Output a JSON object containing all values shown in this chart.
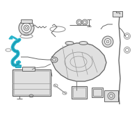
{
  "background_color": "#ffffff",
  "figsize": [
    2.0,
    2.0
  ],
  "dpi": 100,
  "line_color": "#666666",
  "highlight_color": "#2ab5cc",
  "mid_gray": "#999999",
  "fill_gray": "#e0e0e0",
  "fill_dark": "#c8c8c8"
}
